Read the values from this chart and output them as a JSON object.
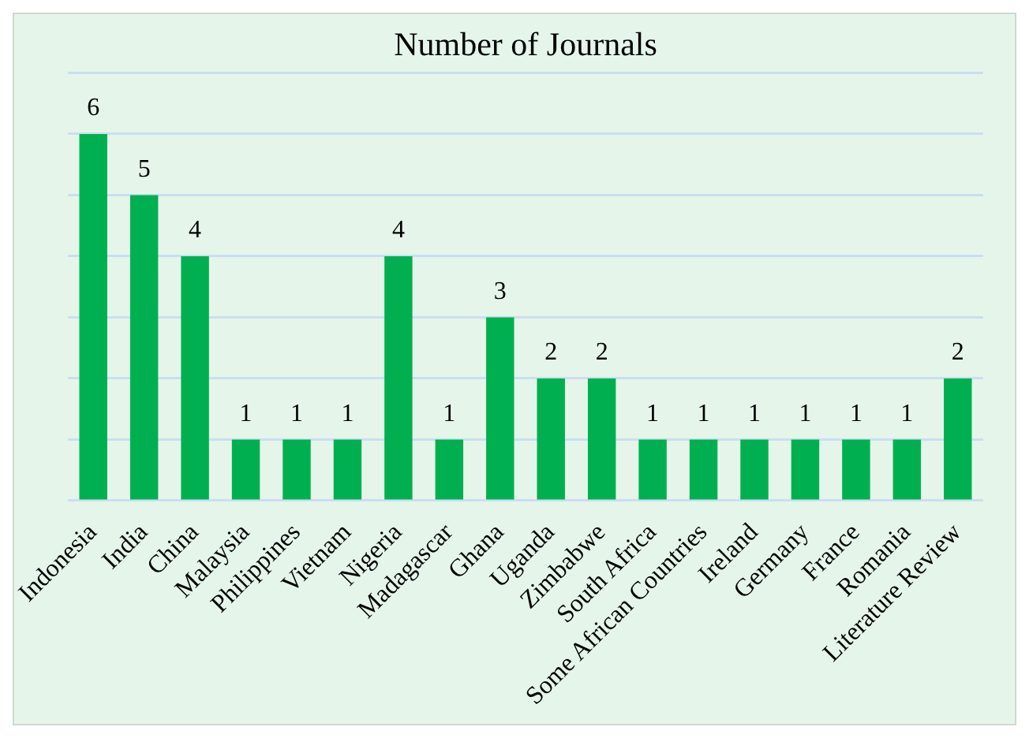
{
  "chart_data": {
    "type": "bar",
    "title": "Number of Journals",
    "categories": [
      "Indonesia",
      "India",
      "China",
      "Malaysia",
      "Philippines",
      "Vietnam",
      "Nigeria",
      "Madagascar",
      "Ghana",
      "Uganda",
      "Zimbabwe",
      "South Africa",
      "Some African Countries",
      "Ireland",
      "Germany",
      "France",
      "Romania",
      "Literature Review"
    ],
    "values": [
      6,
      5,
      4,
      1,
      1,
      1,
      4,
      1,
      3,
      2,
      2,
      1,
      1,
      1,
      1,
      1,
      1,
      2
    ],
    "color": "#00b050",
    "ylim": [
      0,
      7
    ],
    "yticks": [
      {
        "value": 0,
        "label": null
      },
      {
        "value": 1,
        "label": null
      },
      {
        "value": 2,
        "label": null
      },
      {
        "value": 3,
        "label": null
      },
      {
        "value": 4,
        "label": null
      },
      {
        "value": 5,
        "label": null
      },
      {
        "value": 6,
        "label": null
      },
      {
        "value": 7,
        "label": null
      }
    ],
    "grid": "y",
    "tick_labels": "x",
    "data_labels": true
  }
}
